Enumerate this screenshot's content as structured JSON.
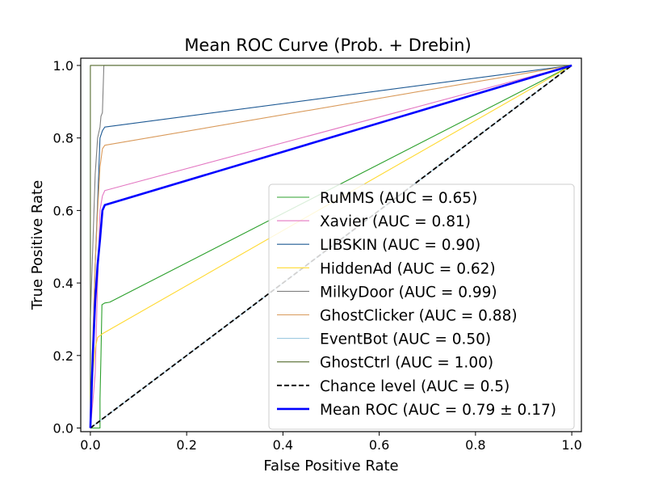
{
  "chart_data": {
    "type": "line",
    "title": "Mean ROC Curve (Prob. + Drebin)",
    "xlabel": "False Positive Rate",
    "ylabel": "True Positive Rate",
    "xlim": [
      -0.02,
      1.02
    ],
    "ylim": [
      -0.01,
      1.02
    ],
    "xticks": [
      "0.0",
      "0.2",
      "0.4",
      "0.6",
      "0.8",
      "1.0"
    ],
    "yticks": [
      "0.0",
      "0.2",
      "0.4",
      "0.6",
      "0.8",
      "1.0"
    ],
    "legend_position": "lower-right",
    "series": [
      {
        "name": "RuMMS (AUC = 0.65)",
        "color": "#2ca02c",
        "style": "solid",
        "points": [
          [
            0,
            0
          ],
          [
            0.02,
            0
          ],
          [
            0.02,
            0.08
          ],
          [
            0.022,
            0.2
          ],
          [
            0.024,
            0.34
          ],
          [
            0.03,
            0.345
          ],
          [
            0.04,
            0.347
          ],
          [
            1,
            1
          ]
        ]
      },
      {
        "name": "Xavier (AUC = 0.81)",
        "color": "#e377c2",
        "style": "solid",
        "points": [
          [
            0,
            0
          ],
          [
            0.005,
            0.07
          ],
          [
            0.01,
            0.15
          ],
          [
            0.015,
            0.4
          ],
          [
            0.02,
            0.6
          ],
          [
            0.025,
            0.64
          ],
          [
            0.03,
            0.655
          ],
          [
            1,
            1
          ]
        ]
      },
      {
        "name": "LIBSKIN (AUC = 0.90)",
        "color": "#1f5a94",
        "style": "solid",
        "points": [
          [
            0,
            0
          ],
          [
            0.01,
            0.45
          ],
          [
            0.015,
            0.62
          ],
          [
            0.02,
            0.8
          ],
          [
            0.025,
            0.82
          ],
          [
            0.03,
            0.83
          ],
          [
            1,
            1
          ]
        ]
      },
      {
        "name": "HiddenAd (AUC = 0.62)",
        "color": "#ffd92f",
        "style": "solid",
        "points": [
          [
            0,
            0
          ],
          [
            0.005,
            0.15
          ],
          [
            0.01,
            0.22
          ],
          [
            0.015,
            0.25
          ],
          [
            0.025,
            0.26
          ],
          [
            1,
            1
          ]
        ]
      },
      {
        "name": "MilkyDoor (AUC = 0.99)",
        "color": "#808080",
        "style": "solid",
        "points": [
          [
            0,
            0
          ],
          [
            0,
            0.3
          ],
          [
            0.005,
            0.5
          ],
          [
            0.008,
            0.62
          ],
          [
            0.01,
            0.7
          ],
          [
            0.015,
            0.8
          ],
          [
            0.02,
            0.83
          ],
          [
            0.022,
            0.86
          ],
          [
            0.025,
            0.87
          ],
          [
            0.028,
            1
          ],
          [
            1,
            1
          ]
        ]
      },
      {
        "name": "GhostClicker (AUC = 0.88)",
        "color": "#d99a5b",
        "style": "solid",
        "points": [
          [
            0,
            0
          ],
          [
            0.005,
            0.25
          ],
          [
            0.01,
            0.45
          ],
          [
            0.015,
            0.6
          ],
          [
            0.02,
            0.72
          ],
          [
            0.025,
            0.77
          ],
          [
            0.03,
            0.78
          ],
          [
            1,
            1
          ]
        ]
      },
      {
        "name": "EventBot (AUC = 0.50)",
        "color": "#9ecae1",
        "style": "solid",
        "points": [
          [
            0,
            0
          ],
          [
            1,
            1
          ]
        ]
      },
      {
        "name": "GhostCtrl (AUC = 1.00)",
        "color": "#556b2f",
        "style": "solid",
        "points": [
          [
            0,
            0
          ],
          [
            0,
            1
          ],
          [
            1,
            1
          ]
        ]
      },
      {
        "name": "Chance level (AUC = 0.5)",
        "color": "#000000",
        "style": "dashed",
        "points": [
          [
            0,
            0
          ],
          [
            1,
            1
          ]
        ]
      },
      {
        "name": "Mean ROC (AUC = 0.79 ± 0.17)",
        "color": "#0000ff",
        "label_color": "#c00000",
        "style": "bold",
        "points": [
          [
            0,
            0
          ],
          [
            0.005,
            0.2
          ],
          [
            0.01,
            0.35
          ],
          [
            0.015,
            0.45
          ],
          [
            0.02,
            0.52
          ],
          [
            0.025,
            0.6
          ],
          [
            0.03,
            0.615
          ],
          [
            1,
            1
          ]
        ]
      }
    ]
  }
}
